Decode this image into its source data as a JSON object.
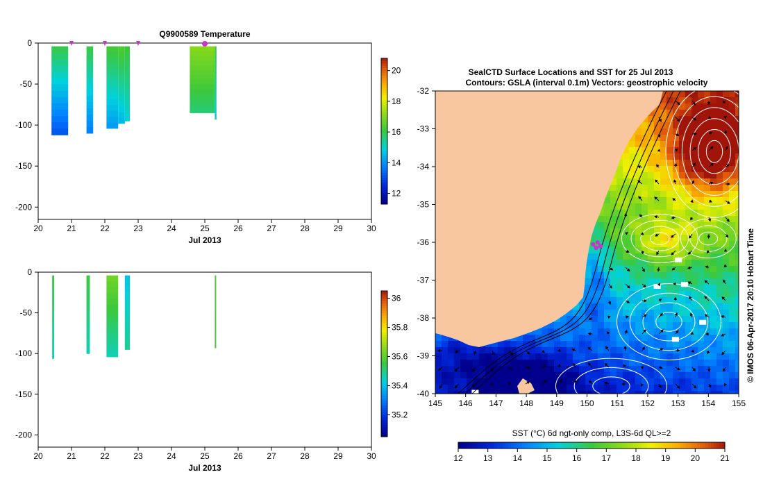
{
  "colors": {
    "land": "#f9c79f",
    "axis": "#000000",
    "contour_white": "#ffffff",
    "contour_black": "#000000",
    "marker": "#cc33cc"
  },
  "chart_data": [
    {
      "id": "temperature",
      "type": "heatmap",
      "title": "Q9900589  Temperature",
      "xlabel": "Jul 2013",
      "ylabel": "",
      "xlim": [
        20,
        30
      ],
      "ylim": [
        -215,
        0
      ],
      "xticks": [
        "20",
        "21",
        "22",
        "23",
        "24",
        "25",
        "26",
        "27",
        "28",
        "29",
        "30"
      ],
      "yticks": [
        "0",
        "-50",
        "-100",
        "-150",
        "-200"
      ],
      "colorbar": {
        "min": 11.3,
        "max": 20.8,
        "ticks": [
          "12",
          "14",
          "16",
          "18",
          "20"
        ],
        "tick_values": [
          12,
          14,
          16,
          18,
          20
        ]
      },
      "surface_markers": [
        21.0,
        22.0,
        23.0
      ],
      "surface_markers_highlight": [
        25.0
      ],
      "profiles": [
        {
          "x0": 20.4,
          "x1": 20.9,
          "depth": 112,
          "top": 16.0,
          "bottom": 13.0
        },
        {
          "x0": 21.45,
          "x1": 21.65,
          "depth": 110,
          "top": 16.0,
          "bottom": 13.6
        },
        {
          "x0": 22.05,
          "x1": 22.4,
          "depth": 104,
          "top": 16.2,
          "bottom": 14.0
        },
        {
          "x0": 22.4,
          "x1": 22.6,
          "depth": 98,
          "top": 16.3,
          "bottom": 14.4
        },
        {
          "x0": 22.6,
          "x1": 22.75,
          "depth": 95,
          "top": 16.1,
          "bottom": 14.8
        },
        {
          "x0": 24.55,
          "x1": 25.3,
          "depth": 85,
          "top": 17.0,
          "bottom": 15.6
        },
        {
          "x0": 25.3,
          "x1": 25.35,
          "depth": 93,
          "top": 16.0,
          "bottom": 14.6
        }
      ]
    },
    {
      "id": "salinity",
      "type": "heatmap",
      "title": "",
      "xlabel": "Jul 2013",
      "ylabel": "",
      "xlim": [
        20,
        30
      ],
      "ylim": [
        -215,
        0
      ],
      "xticks": [
        "20",
        "21",
        "22",
        "23",
        "24",
        "25",
        "26",
        "27",
        "28",
        "29",
        "30"
      ],
      "yticks": [
        "0",
        "-50",
        "-100",
        "-150",
        "-200"
      ],
      "colorbar": {
        "min": 35.05,
        "max": 36.05,
        "ticks": [
          "35.2",
          "35.4",
          "35.6",
          "35.8",
          "36"
        ],
        "tick_values": [
          35.2,
          35.4,
          35.6,
          35.8,
          36.0
        ]
      },
      "profiles": [
        {
          "x0": 20.42,
          "x1": 20.48,
          "depth": 106,
          "top": 35.55,
          "bottom": 35.45
        },
        {
          "x0": 21.45,
          "x1": 21.55,
          "depth": 100,
          "top": 35.55,
          "bottom": 35.45
        },
        {
          "x0": 22.05,
          "x1": 22.4,
          "depth": 104,
          "top": 35.62,
          "bottom": 35.45
        },
        {
          "x0": 22.6,
          "x1": 22.75,
          "depth": 95,
          "top": 35.4,
          "bottom": 35.48
        },
        {
          "x0": 25.3,
          "x1": 25.34,
          "depth": 93,
          "top": 35.58,
          "bottom": 35.56
        }
      ]
    },
    {
      "id": "sst_map",
      "type": "heatmap",
      "title": "SealCTD Surface Locations and SST for 25 Jul 2013",
      "subtitle": "Contours: GSLA (interval 0.1m) Vectors: geostrophic velocity",
      "xlim": [
        145,
        155
      ],
      "ylim": [
        -40,
        -32
      ],
      "xticks": [
        "145",
        "146",
        "147",
        "148",
        "149",
        "150",
        "151",
        "152",
        "153",
        "154",
        "155"
      ],
      "yticks": [
        "-32",
        "-33",
        "-34",
        "-35",
        "-36",
        "-37",
        "-38",
        "-39",
        "-40"
      ],
      "colorbar": {
        "min": 12,
        "max": 21,
        "ticks": [
          "12",
          "13",
          "14",
          "15",
          "16",
          "17",
          "18",
          "19",
          "20",
          "21"
        ],
        "label": "SST (°C) 6d ngt-only comp, L3S-6d QL>=2"
      },
      "track": [
        [
          150.2,
          -36.05
        ],
        [
          150.3,
          -36.15
        ],
        [
          150.45,
          -36.1
        ],
        [
          150.35,
          -36.0
        ]
      ],
      "credit": "© IMOS 06-Apr-2017 20:10 Hobart Time"
    }
  ]
}
